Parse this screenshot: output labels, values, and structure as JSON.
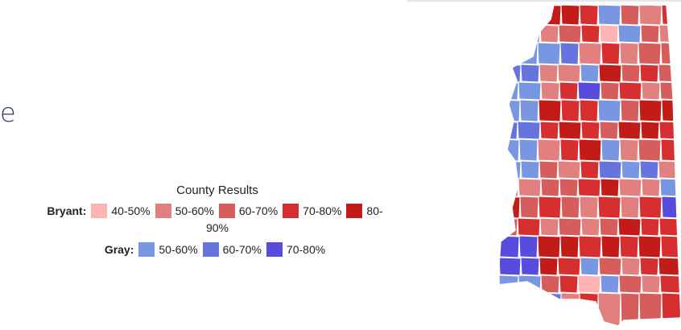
{
  "page": {
    "fragment_text": "e"
  },
  "legend": {
    "title": "County Results",
    "rows": [
      {
        "candidate": "Bryant:",
        "items": [
          {
            "label": "40-50%",
            "color": "#ffb3b3"
          },
          {
            "label": "50-60%",
            "color": "#e27f7f"
          },
          {
            "label": "60-70%",
            "color": "#d75d5d"
          },
          {
            "label": "70-80%",
            "color": "#d72f30"
          },
          {
            "label": "80-",
            "color": "#c21b18"
          }
        ],
        "wrap_text": "90%"
      },
      {
        "candidate": "Gray:",
        "items": [
          {
            "label": "50-60%",
            "color": "#7996e2"
          },
          {
            "label": "60-70%",
            "color": "#6674de"
          },
          {
            "label": "70-80%",
            "color": "#584cde"
          }
        ]
      }
    ]
  },
  "map": {
    "counties": [
      {
        "fill": "#d72f30"
      },
      {
        "fill": "#d75d5d"
      },
      {
        "fill": "#c21b18"
      },
      {
        "fill": "#c21b18"
      },
      {
        "fill": "#d72f30"
      },
      {
        "fill": "#7996e2"
      },
      {
        "fill": "#d75d5d"
      },
      {
        "fill": "#e27f7f"
      },
      {
        "fill": "#d72f30"
      },
      {
        "fill": "#c21b18"
      },
      {
        "fill": "#7996e2"
      },
      {
        "fill": "#e27f7f"
      },
      {
        "fill": "#d75d5d"
      },
      {
        "fill": "#d72f30"
      },
      {
        "fill": "#ffb3b3"
      },
      {
        "fill": "#7996e2"
      },
      {
        "fill": "#d75d5d"
      },
      {
        "fill": "#e27f7f"
      },
      {
        "fill": "#d72f30"
      },
      {
        "fill": "#6674de"
      },
      {
        "fill": "#7996e2"
      },
      {
        "fill": "#6674de"
      },
      {
        "fill": "#e27f7f"
      },
      {
        "fill": "#d72f30"
      },
      {
        "fill": "#e27f7f"
      },
      {
        "fill": "#d75d5d"
      },
      {
        "fill": "#d75d5d"
      },
      {
        "fill": "#d72f30"
      },
      {
        "fill": "#c21b18"
      },
      {
        "fill": "#e27f7f"
      },
      {
        "fill": "#e27f7f"
      },
      {
        "fill": "#7996e2"
      },
      {
        "fill": "#c21b18"
      },
      {
        "fill": "#d75d5d"
      },
      {
        "fill": "#d72f30"
      },
      {
        "fill": "#d75d5d"
      },
      {
        "fill": "#e27f7f"
      },
      {
        "fill": "#d72f30"
      },
      {
        "fill": "#e27f7f"
      },
      {
        "fill": "#d72f30"
      },
      {
        "fill": "#584cde"
      },
      {
        "fill": "#d75d5d"
      },
      {
        "fill": "#d72f30"
      },
      {
        "fill": "#e27f7f"
      },
      {
        "fill": "#d75d5d"
      },
      {
        "fill": "#e27f7f"
      },
      {
        "fill": "#d75d5d"
      },
      {
        "fill": "#c21b18"
      },
      {
        "fill": "#d72f30"
      },
      {
        "fill": "#d72f30"
      },
      {
        "fill": "#7996e2"
      },
      {
        "fill": "#d75d5d"
      },
      {
        "fill": "#c21b18"
      },
      {
        "fill": "#c21b18"
      },
      {
        "fill": "#d72f30"
      },
      {
        "fill": "#c21b18"
      },
      {
        "fill": "#d72f30"
      },
      {
        "fill": "#c21b18"
      }
    ]
  }
}
